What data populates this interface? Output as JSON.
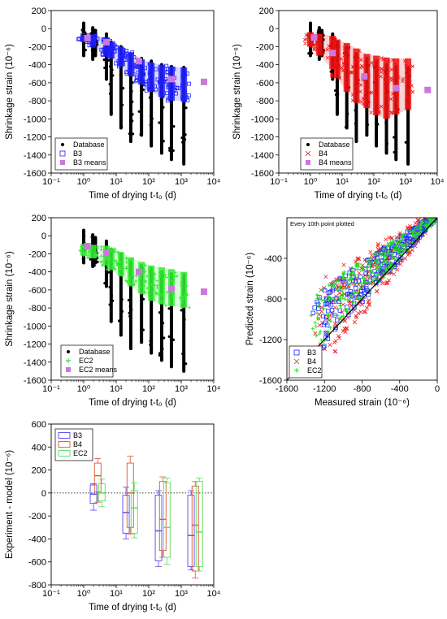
{
  "chart_data": [
    {
      "id": "p1",
      "type": "scatter",
      "xlabel": "Time of drying t-t₀ (d)",
      "ylabel": "Shrinkage strain (10⁻⁶)",
      "xscale": "log",
      "xlim": [
        0.1,
        10000
      ],
      "ylim": [
        -1600,
        200
      ],
      "xticks": [
        "10⁻¹",
        "10⁰",
        "10¹",
        "10²",
        "10³",
        "10⁴"
      ],
      "yticks": [
        "200",
        "0",
        "-200",
        "-400",
        "-600",
        "-800",
        "-1000",
        "-1200",
        "-1400",
        "-1600"
      ],
      "legend_position": "bottom-left",
      "legend": [
        {
          "label": "Database",
          "marker": "dot",
          "color": "#000000"
        },
        {
          "label": "B3",
          "marker": "open-square",
          "color": "#1f1fff"
        },
        {
          "label": "B3 means",
          "marker": "filled-square",
          "color": "#cc77dd"
        }
      ],
      "database_columns": [
        {
          "x": 1.0,
          "ymin": -300,
          "ymax": 60
        },
        {
          "x": 1.9,
          "ymin": -340,
          "ymax": 10
        },
        {
          "x": 2.3,
          "ymin": -300,
          "ymax": -20
        },
        {
          "x": 5,
          "ymin": -560,
          "ymax": -60
        },
        {
          "x": 7,
          "ymin": -950,
          "ymax": -150
        },
        {
          "x": 14,
          "ymin": -1100,
          "ymax": -200
        },
        {
          "x": 28,
          "ymin": -1250,
          "ymax": -280
        },
        {
          "x": 60,
          "ymin": -1180,
          "ymax": -330
        },
        {
          "x": 120,
          "ymin": -1300,
          "ymax": -360
        },
        {
          "x": 250,
          "ymin": -1380,
          "ymax": -400
        },
        {
          "x": 500,
          "ymin": -1450,
          "ymax": -420
        },
        {
          "x": 1200,
          "ymin": -1500,
          "ymax": -430
        }
      ],
      "model_columns": [
        {
          "x": 1.0,
          "ymin": -150,
          "ymax": -70
        },
        {
          "x": 1.9,
          "ymin": -200,
          "ymax": -80
        },
        {
          "x": 5,
          "ymin": -300,
          "ymax": -100
        },
        {
          "x": 7,
          "ymin": -330,
          "ymax": -150
        },
        {
          "x": 14,
          "ymin": -420,
          "ymax": -200
        },
        {
          "x": 28,
          "ymin": -520,
          "ymax": -260
        },
        {
          "x": 60,
          "ymin": -620,
          "ymax": -340
        },
        {
          "x": 120,
          "ymin": -700,
          "ymax": -380
        },
        {
          "x": 250,
          "ymin": -760,
          "ymax": -400
        },
        {
          "x": 500,
          "ymin": -800,
          "ymax": -420
        },
        {
          "x": 1200,
          "ymin": -800,
          "ymax": -430
        }
      ],
      "model_color": "#1f1fff",
      "means": [
        {
          "x": 1.3,
          "y": -105
        },
        {
          "x": 5,
          "y": -150
        },
        {
          "x": 50,
          "y": -360
        },
        {
          "x": 500,
          "y": -560
        },
        {
          "x": 5000,
          "y": -590
        }
      ]
    },
    {
      "id": "p2",
      "type": "scatter",
      "xlabel": "Time of drying t-t₀ (d)",
      "ylabel": "Shrinkage strain (10⁻⁶)",
      "xscale": "log",
      "xlim": [
        0.1,
        10000
      ],
      "ylim": [
        -1600,
        200
      ],
      "xticks": [
        "10⁻¹",
        "10⁰",
        "10¹",
        "10²",
        "10³",
        "10⁴"
      ],
      "yticks": [
        "200",
        "0",
        "-200",
        "-400",
        "-600",
        "-800",
        "-1000",
        "-1200",
        "-1400",
        "-1600"
      ],
      "legend_position": "bottom-right",
      "legend": [
        {
          "label": "Database",
          "marker": "dot",
          "color": "#000000"
        },
        {
          "label": "B4",
          "marker": "cross",
          "color": "#dd2222"
        },
        {
          "label": "B4 means",
          "marker": "filled-square",
          "color": "#cc77dd"
        }
      ],
      "database_columns": [
        {
          "x": 1.0,
          "ymin": -300,
          "ymax": 60
        },
        {
          "x": 1.9,
          "ymin": -340,
          "ymax": 10
        },
        {
          "x": 2.3,
          "ymin": -300,
          "ymax": -20
        },
        {
          "x": 5,
          "ymin": -560,
          "ymax": -60
        },
        {
          "x": 7,
          "ymin": -950,
          "ymax": -150
        },
        {
          "x": 14,
          "ymin": -1100,
          "ymax": -200
        },
        {
          "x": 28,
          "ymin": -1250,
          "ymax": -280
        },
        {
          "x": 60,
          "ymin": -1180,
          "ymax": -330
        },
        {
          "x": 120,
          "ymin": -1300,
          "ymax": -360
        },
        {
          "x": 250,
          "ymin": -1380,
          "ymax": -400
        },
        {
          "x": 500,
          "ymin": -1450,
          "ymax": -420
        },
        {
          "x": 1200,
          "ymin": -1500,
          "ymax": -430
        }
      ],
      "model_columns": [
        {
          "x": 1.0,
          "ymin": -200,
          "ymax": -40
        },
        {
          "x": 1.9,
          "ymin": -300,
          "ymax": -60
        },
        {
          "x": 5,
          "ymin": -450,
          "ymax": -80
        },
        {
          "x": 7,
          "ymin": -550,
          "ymax": -120
        },
        {
          "x": 14,
          "ymin": -700,
          "ymax": -160
        },
        {
          "x": 28,
          "ymin": -820,
          "ymax": -220
        },
        {
          "x": 60,
          "ymin": -880,
          "ymax": -280
        },
        {
          "x": 120,
          "ymin": -960,
          "ymax": -300
        },
        {
          "x": 250,
          "ymin": -1000,
          "ymax": -320
        },
        {
          "x": 500,
          "ymin": -950,
          "ymax": -330
        },
        {
          "x": 1200,
          "ymin": -900,
          "ymax": -330
        }
      ],
      "model_color": "#ee1111",
      "means": [
        {
          "x": 1.3,
          "y": -100
        },
        {
          "x": 5,
          "y": -270
        },
        {
          "x": 50,
          "y": -530
        },
        {
          "x": 500,
          "y": -660
        },
        {
          "x": 5000,
          "y": -680
        }
      ]
    },
    {
      "id": "p3",
      "type": "scatter",
      "xlabel": "Time of drying t-t₀ (d)",
      "ylabel": "Shrinkage strain (10⁻⁶)",
      "xscale": "log",
      "xlim": [
        0.1,
        10000
      ],
      "ylim": [
        -1600,
        200
      ],
      "xticks": [
        "10⁻¹",
        "10⁰",
        "10¹",
        "10²",
        "10³",
        "10⁴"
      ],
      "yticks": [
        "200",
        "0",
        "-200",
        "-400",
        "-600",
        "-800",
        "-1000",
        "-1200",
        "-1400",
        "-1600"
      ],
      "legend_position": "bottom-right",
      "legend": [
        {
          "label": "Database",
          "marker": "dot",
          "color": "#000000"
        },
        {
          "label": "EC2",
          "marker": "plus",
          "color": "#22cc22"
        },
        {
          "label": "EC2 means",
          "marker": "filled-square",
          "color": "#cc77dd"
        }
      ],
      "database_columns": [
        {
          "x": 1.0,
          "ymin": -300,
          "ymax": 60
        },
        {
          "x": 1.9,
          "ymin": -340,
          "ymax": 10
        },
        {
          "x": 2.3,
          "ymin": -300,
          "ymax": -20
        },
        {
          "x": 5,
          "ymin": -560,
          "ymax": -60
        },
        {
          "x": 7,
          "ymin": -950,
          "ymax": -150
        },
        {
          "x": 14,
          "ymin": -1100,
          "ymax": -200
        },
        {
          "x": 28,
          "ymin": -1250,
          "ymax": -280
        },
        {
          "x": 60,
          "ymin": -1180,
          "ymax": -330
        },
        {
          "x": 120,
          "ymin": -1300,
          "ymax": -360
        },
        {
          "x": 250,
          "ymin": -1380,
          "ymax": -400
        },
        {
          "x": 500,
          "ymin": -1450,
          "ymax": -420
        },
        {
          "x": 1200,
          "ymin": -1500,
          "ymax": -430
        }
      ],
      "model_columns": [
        {
          "x": 1.0,
          "ymin": -220,
          "ymax": -90
        },
        {
          "x": 1.9,
          "ymin": -250,
          "ymax": -100
        },
        {
          "x": 5,
          "ymin": -330,
          "ymax": -110
        },
        {
          "x": 7,
          "ymin": -380,
          "ymax": -140
        },
        {
          "x": 14,
          "ymin": -450,
          "ymax": -180
        },
        {
          "x": 28,
          "ymin": -560,
          "ymax": -240
        },
        {
          "x": 60,
          "ymin": -640,
          "ymax": -290
        },
        {
          "x": 120,
          "ymin": -720,
          "ymax": -330
        },
        {
          "x": 250,
          "ymin": -760,
          "ymax": -350
        },
        {
          "x": 500,
          "ymin": -780,
          "ymax": -370
        },
        {
          "x": 1200,
          "ymin": -800,
          "ymax": -400
        }
      ],
      "model_color": "#33ee33",
      "means": [
        {
          "x": 1.3,
          "y": -115
        },
        {
          "x": 5,
          "y": -190
        },
        {
          "x": 50,
          "y": -400
        },
        {
          "x": 500,
          "y": -590
        },
        {
          "x": 5000,
          "y": -620
        }
      ]
    },
    {
      "id": "p4",
      "type": "scatter",
      "xlabel": "Measured strain (10⁻⁶)",
      "ylabel": "Predicted strain (10⁻⁶)",
      "xlim": [
        -1600,
        0
      ],
      "ylim": [
        -1600,
        0
      ],
      "xticks": [
        "-1600",
        "-1200",
        "-800",
        "-400",
        "0"
      ],
      "yticks": [
        "-400",
        "-800",
        "-1200",
        "-1600"
      ],
      "annotation": "Every 10th point plotted",
      "legend_position": "bottom-left",
      "legend": [
        {
          "label": "B3",
          "marker": "open-square",
          "color": "#1f1fff"
        },
        {
          "label": "B4",
          "marker": "cross",
          "color": "#dd2222"
        },
        {
          "label": "EC2",
          "marker": "plus",
          "color": "#22cc22"
        }
      ],
      "clouds": [
        {
          "name": "B3",
          "x_range": [
            -1350,
            -20
          ],
          "offset_range": [
            -80,
            520
          ],
          "count": 260,
          "color": "#2233ff",
          "marker": "open-square"
        },
        {
          "name": "B4",
          "x_range": [
            -1300,
            -20
          ],
          "offset_range": [
            -300,
            620
          ],
          "count": 300,
          "color": "#ee2222",
          "marker": "cross"
        },
        {
          "name": "EC2",
          "x_range": [
            -1350,
            -20
          ],
          "offset_range": [
            -50,
            560
          ],
          "count": 300,
          "color": "#22dd22",
          "marker": "plus"
        }
      ]
    },
    {
      "id": "p5",
      "type": "box",
      "xlabel": "Time of drying t-t₀ (d)",
      "ylabel": "Experiment - model (10⁻⁶)",
      "xscale": "log",
      "xlim": [
        0.1,
        10000
      ],
      "ylim": [
        -800,
        600
      ],
      "xticks": [
        "10⁻¹",
        "10⁰",
        "10¹",
        "10²",
        "10³",
        "10⁴"
      ],
      "yticks": [
        "600",
        "400",
        "200",
        "0",
        "-200",
        "-400",
        "-600",
        "-800"
      ],
      "legend_position": "top-left",
      "legend": [
        {
          "label": "B3",
          "color": "#5544ee"
        },
        {
          "label": "B4",
          "color": "#dd5533"
        },
        {
          "label": "EC2",
          "color": "#55dd55"
        }
      ],
      "boxes": [
        {
          "series": "B3",
          "x": 2.0,
          "wmin": -150,
          "q1": -90,
          "med": -10,
          "q3": 70,
          "wmax": 80
        },
        {
          "series": "B4",
          "x": 2.7,
          "wmin": -80,
          "q1": 10,
          "med": 150,
          "q3": 260,
          "wmax": 300
        },
        {
          "series": "EC2",
          "x": 3.6,
          "wmin": -120,
          "q1": -70,
          "med": 0,
          "q3": 80,
          "wmax": 120
        },
        {
          "series": "B3",
          "x": 20,
          "wmin": -400,
          "q1": -350,
          "med": -170,
          "q3": -20,
          "wmax": 50
        },
        {
          "series": "B4",
          "x": 27,
          "wmin": -360,
          "q1": -300,
          "med": 0,
          "q3": 260,
          "wmax": 320
        },
        {
          "series": "EC2",
          "x": 36,
          "wmin": -390,
          "q1": -350,
          "med": -130,
          "q3": 20,
          "wmax": 90
        },
        {
          "series": "B3",
          "x": 200,
          "wmin": -640,
          "q1": -590,
          "med": -330,
          "q3": -20,
          "wmax": 20
        },
        {
          "series": "B4",
          "x": 270,
          "wmin": -560,
          "q1": -500,
          "med": -230,
          "q3": 100,
          "wmax": 140
        },
        {
          "series": "EC2",
          "x": 360,
          "wmin": -620,
          "q1": -560,
          "med": -300,
          "q3": 90,
          "wmax": 130
        },
        {
          "series": "B3",
          "x": 2000,
          "wmin": -670,
          "q1": -640,
          "med": -370,
          "q3": -20,
          "wmax": 20
        },
        {
          "series": "B4",
          "x": 2700,
          "wmin": -740,
          "q1": -680,
          "med": -280,
          "q3": 60,
          "wmax": 100
        },
        {
          "series": "EC2",
          "x": 3600,
          "wmin": -680,
          "q1": -640,
          "med": -340,
          "q3": 100,
          "wmax": 130
        }
      ]
    }
  ]
}
